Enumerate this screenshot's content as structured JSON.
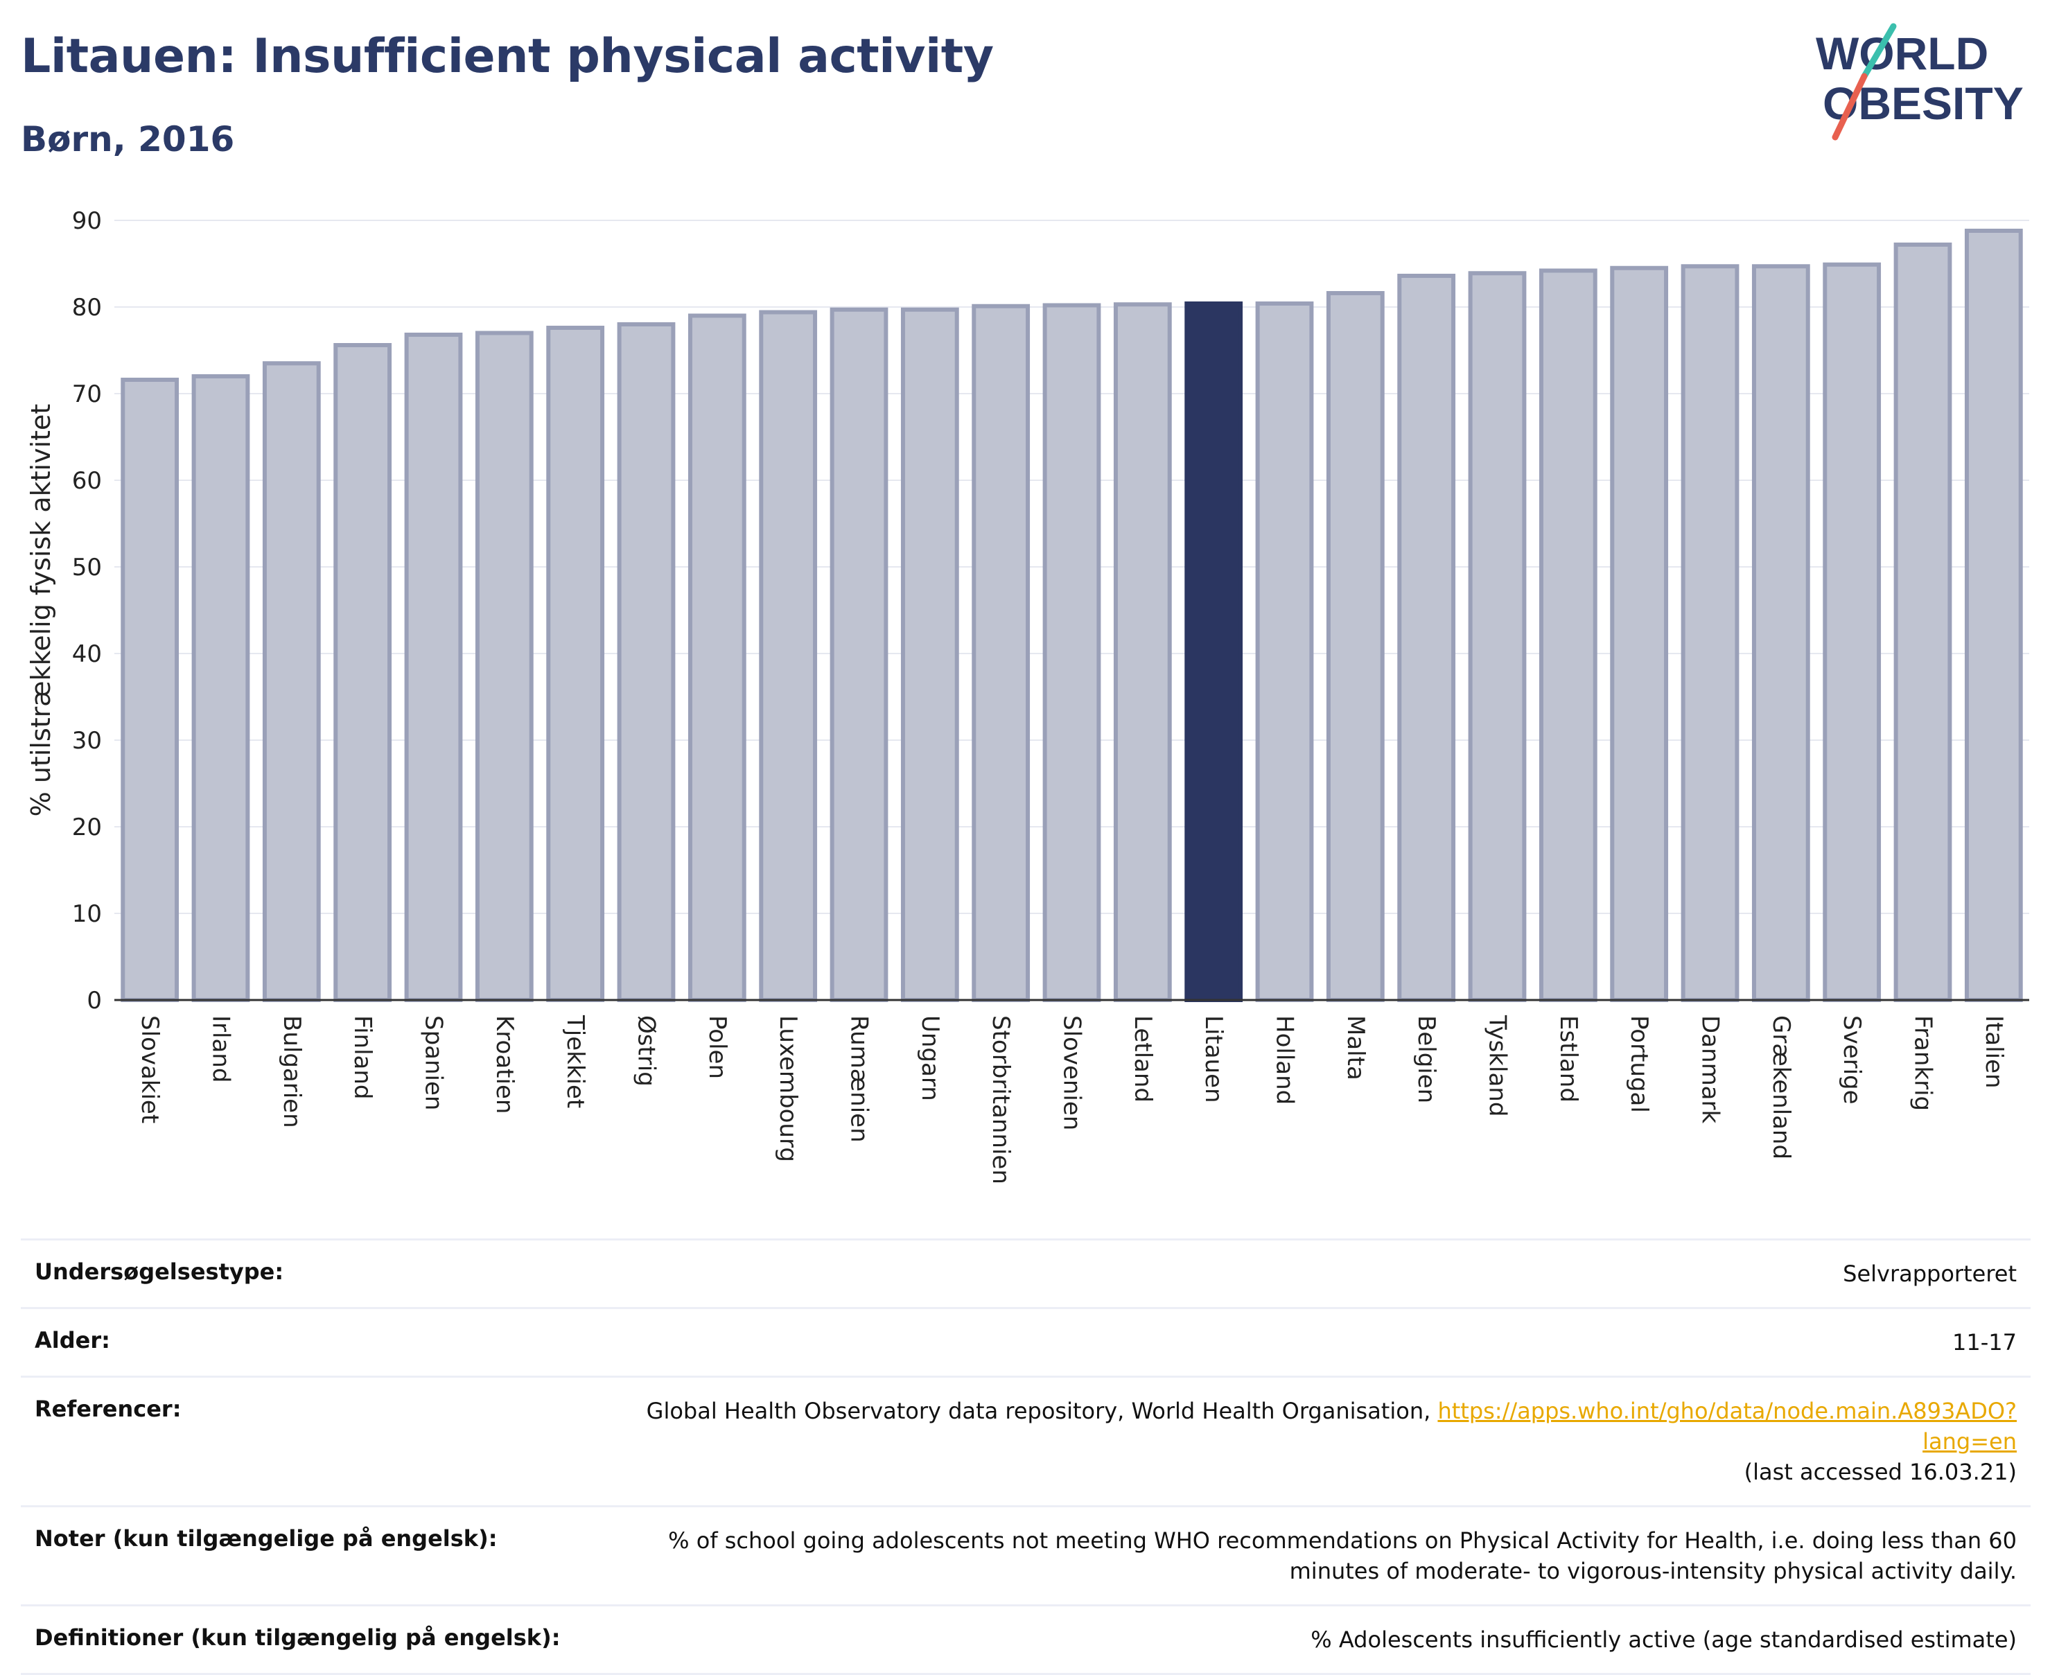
{
  "header": {
    "title": "Litauen: Insufficient physical activity",
    "subtitle": "Børn, 2016"
  },
  "logo": {
    "line1": "WORLD",
    "line2": "OBESITY"
  },
  "colors": {
    "bar_fill": "#bfc3d1",
    "bar_stroke": "#9aa0b8",
    "highlight": "#2b3661",
    "title": "#2b3a67",
    "grid": "#e6e8f0",
    "link": "#e8a800",
    "logo_teal": "#3bbfad",
    "logo_red": "#e8604f"
  },
  "chart_data": {
    "type": "bar",
    "title": "",
    "xlabel": "",
    "ylabel": "% utilstrækkelig fysisk aktivitet",
    "ylim": [
      0,
      90
    ],
    "yticks": [
      0,
      10,
      20,
      30,
      40,
      50,
      60,
      70,
      80,
      90
    ],
    "grid": true,
    "categories": [
      "Slovakiet",
      "Irland",
      "Bulgarien",
      "Finland",
      "Spanien",
      "Kroatien",
      "Tjekkiet",
      "Østrig",
      "Polen",
      "Luxembourg",
      "Rumænien",
      "Ungarn",
      "Storbritannien",
      "Slovenien",
      "Letland",
      "Litauen",
      "Holland",
      "Malta",
      "Belgien",
      "Tyskland",
      "Estland",
      "Portugal",
      "Danmark",
      "Grækenland",
      "Sverige",
      "Frankrig",
      "Italien"
    ],
    "values": [
      71.6,
      72.0,
      73.5,
      75.6,
      76.8,
      77.0,
      77.6,
      78.0,
      79.0,
      79.4,
      79.7,
      79.7,
      80.1,
      80.2,
      80.3,
      80.4,
      80.4,
      81.6,
      83.6,
      83.9,
      84.2,
      84.5,
      84.7,
      84.7,
      84.9,
      87.2,
      88.8
    ],
    "highlight": "Litauen"
  },
  "meta": {
    "rows": [
      {
        "key": "Undersøgelsestype:",
        "value": "Selvrapporteret"
      },
      {
        "key": "Alder:",
        "value": "11-17"
      },
      {
        "key": "Referencer:",
        "value": "Global Health Observatory data repository, World Health Organisation,",
        "link": "https://apps.who.int/gho/data/node.main.A893ADO?lang=en",
        "suffix": "(last accessed 16.03.21)"
      },
      {
        "key": "Noter (kun tilgængelige på engelsk):",
        "value": "% of school going adolescents not meeting WHO recommendations on Physical Activity for Health, i.e. doing less than 60 minutes of moderate- to vigorous-intensity physical activity daily."
      },
      {
        "key": "Definitioner (kun tilgængelig på engelsk):",
        "value": "% Adolescents insufficiently active (age standardised estimate)"
      }
    ]
  }
}
